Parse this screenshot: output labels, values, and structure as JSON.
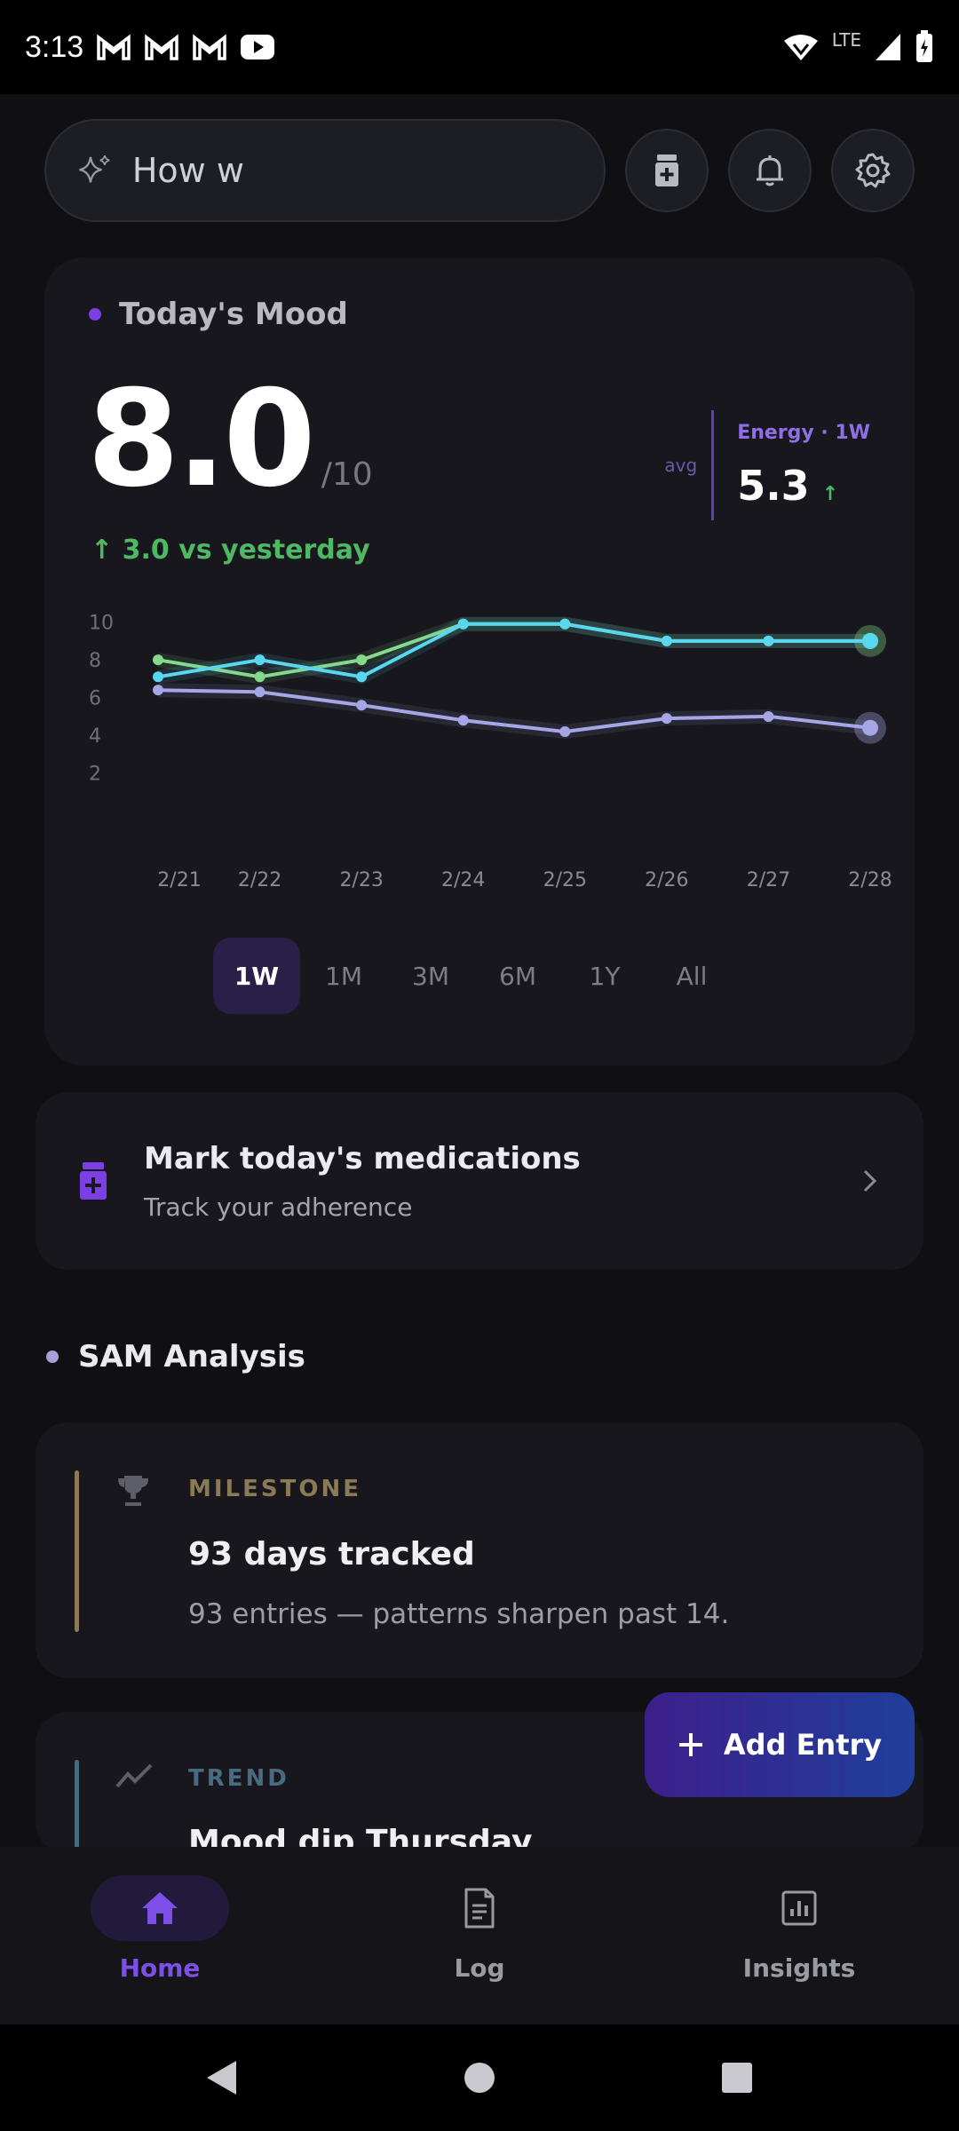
{
  "status_bar": {
    "time": "3:13",
    "network": "LTE"
  },
  "search": {
    "value": "How w"
  },
  "mood": {
    "title": "Today's Mood",
    "score": "8.0",
    "out_of": "/10",
    "delta": "↑ 3.0 vs yesterday",
    "avg_label": "avg",
    "energy_label": "Energy · 1W",
    "energy_value": "5.3",
    "energy_trend": "↑"
  },
  "chart_data": {
    "type": "line",
    "x": [
      "2/21",
      "2/22",
      "2/23",
      "2/24",
      "2/25",
      "2/26",
      "2/27",
      "2/28"
    ],
    "yticks": [
      10,
      8,
      6,
      4,
      2
    ],
    "ylim": [
      1,
      10.5
    ],
    "grid": false,
    "series": [
      {
        "color": "#84d98c",
        "values": [
          8.0,
          7.1,
          8.0,
          9.9,
          9.9,
          9.0,
          9.0,
          9.0
        ]
      },
      {
        "color": "#5ad6ef",
        "values": [
          7.1,
          8.0,
          7.1,
          9.9,
          9.9,
          9.0,
          9.0,
          9.0
        ]
      },
      {
        "color": "#a6a6e6",
        "values": [
          6.4,
          6.3,
          5.6,
          4.8,
          4.2,
          4.9,
          5.0,
          4.4
        ]
      }
    ]
  },
  "ranges": [
    "1W",
    "1M",
    "3M",
    "6M",
    "1Y",
    "All"
  ],
  "medication": {
    "title": "Mark today's medications",
    "subtitle": "Track your adherence"
  },
  "sam": {
    "heading": "SAM Analysis",
    "cards": [
      {
        "tag": "MILESTONE",
        "title": "93 days tracked",
        "desc": "93 entries — patterns sharpen past 14.",
        "accent": "#8a7a55"
      },
      {
        "tag": "TREND",
        "title": "Mood dip Thursday",
        "accent": "#4a6a80"
      }
    ]
  },
  "fab": {
    "label": "Add Entry"
  },
  "nav": [
    {
      "label": "Home",
      "icon": "home-icon"
    },
    {
      "label": "Log",
      "icon": "log-icon"
    },
    {
      "label": "Insights",
      "icon": "insights-icon"
    }
  ]
}
